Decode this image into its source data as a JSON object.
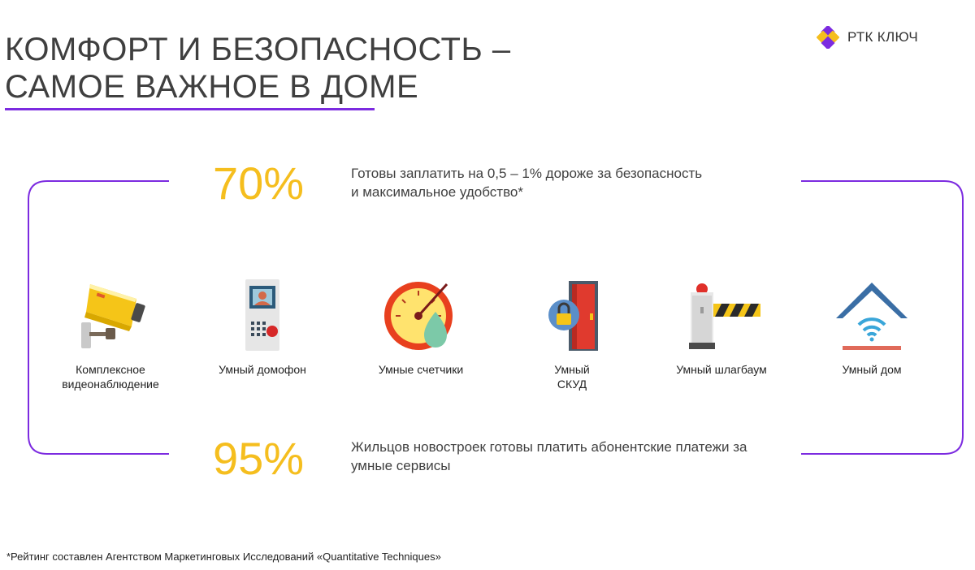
{
  "header": {
    "title_line1": "КОМФОРТ И БЕЗОПАСНОСТЬ –",
    "title_line2": "САМОЕ ВАЖНОЕ В ДОМЕ",
    "accent_color": "#7c2be0"
  },
  "logo": {
    "text": "РТК КЛЮЧ",
    "colors": [
      "#f5be1e",
      "#7c2be0"
    ]
  },
  "stats": [
    {
      "value": "70%",
      "text": "Готовы заплатить на 0,5 – 1% дороже за безопасность\nи максимальное удобство*"
    },
    {
      "value": "95%",
      "text": "Жильцов новостроек готовы платить абонентские платежи за\nумные сервисы"
    }
  ],
  "features": [
    {
      "icon": "security-camera-icon",
      "label": "Комплексное\nвидеонаблюдение"
    },
    {
      "icon": "intercom-icon",
      "label": "Умный домофон"
    },
    {
      "icon": "meter-icon",
      "label": "Умные счетчики"
    },
    {
      "icon": "door-lock-icon",
      "label": "Умный\nСКУД"
    },
    {
      "icon": "barrier-icon",
      "label": "Умный шлагбаум"
    },
    {
      "icon": "smart-home-icon",
      "label": "Умный дом"
    }
  ],
  "footnote": "*Рейтинг составлен Агентством Маркетинговых Исследований «Quantitative Techniques»",
  "colors": {
    "highlight": "#f5be1e",
    "frame": "#7c2be0"
  }
}
